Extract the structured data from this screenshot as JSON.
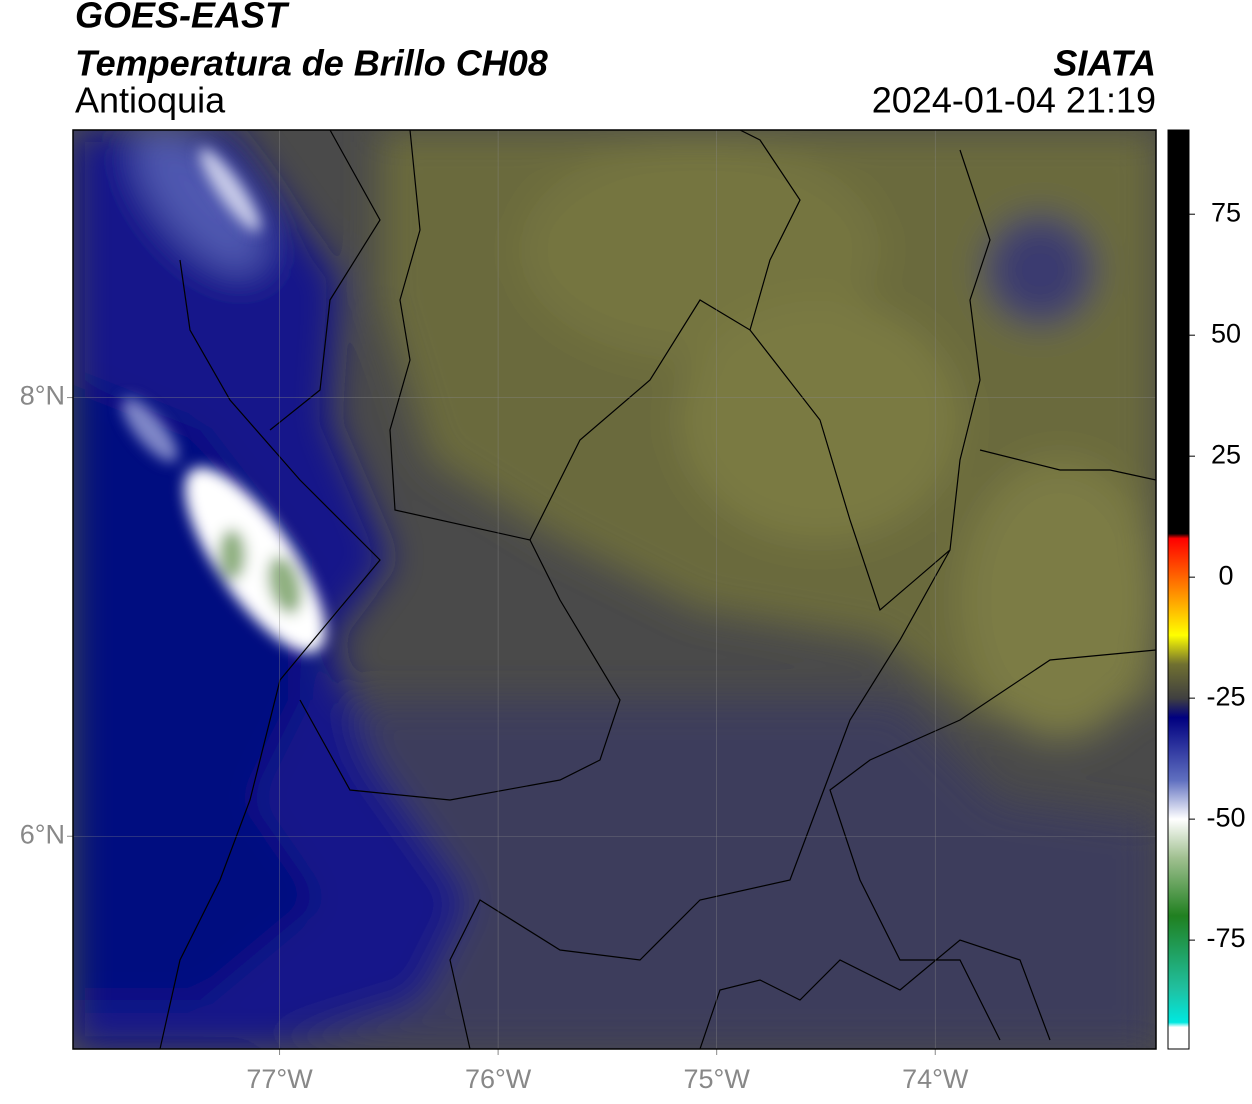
{
  "header": {
    "title": "GOES-EAST",
    "subtitle": "Temperatura de Brillo CH08",
    "source": "SIATA",
    "region": "Antioquia",
    "timestamp": "2024-01-04 21:19"
  },
  "map": {
    "xlim": [
      -77.945,
      -72.99
    ],
    "ylim": [
      5.03,
      9.22
    ],
    "xticks": [
      {
        "value": -77,
        "label": "77°W"
      },
      {
        "value": -76,
        "label": "76°W"
      },
      {
        "value": -75,
        "label": "75°W"
      },
      {
        "value": -74,
        "label": "74°W"
      }
    ],
    "yticks": [
      {
        "value": 6,
        "label": "6°N"
      },
      {
        "value": 8,
        "label": "8°N"
      }
    ],
    "grid": true
  },
  "colorbar": {
    "lim": [
      -97.5,
      92.4
    ],
    "ticks": [
      -75,
      -50,
      -25,
      0,
      25,
      50,
      75
    ],
    "stops": [
      {
        "value": 92.4,
        "color": "#000000"
      },
      {
        "value": 9,
        "color": "#000000"
      },
      {
        "value": 8,
        "color": "#ff0000"
      },
      {
        "value": -5,
        "color": "#ffa500"
      },
      {
        "value": -12,
        "color": "#ffff00"
      },
      {
        "value": -18,
        "color": "#707030"
      },
      {
        "value": -25,
        "color": "#404040"
      },
      {
        "value": -29,
        "color": "#000080"
      },
      {
        "value": -42,
        "color": "#6070c0"
      },
      {
        "value": -50,
        "color": "#ffffff"
      },
      {
        "value": -58,
        "color": "#a0c090"
      },
      {
        "value": -70,
        "color": "#208020"
      },
      {
        "value": -85,
        "color": "#20c0a0"
      },
      {
        "value": -92,
        "color": "#00e8e0"
      },
      {
        "value": -93,
        "color": "#ffffff"
      },
      {
        "value": -97.5,
        "color": "#ffffff"
      }
    ]
  }
}
